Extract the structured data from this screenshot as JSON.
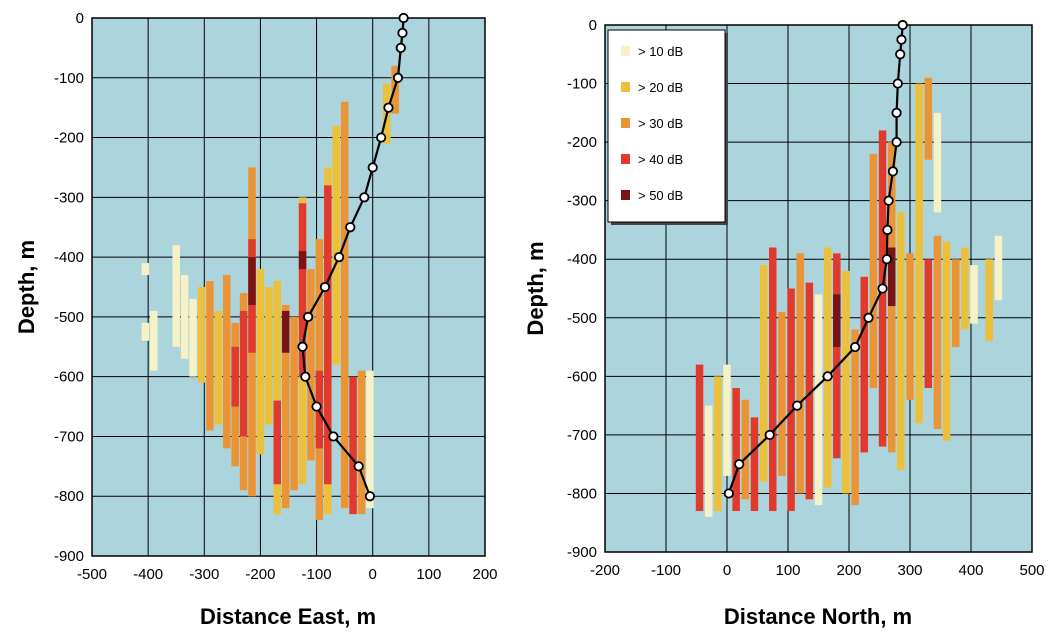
{
  "colors": {
    "plot_bg": "#acd4dd",
    "grid": "#000000",
    "trajectory": "#000000",
    "bins": [
      "#f6f1c6",
      "#ecc03a",
      "#eb9435",
      "#e03a2c",
      "#7a1414"
    ]
  },
  "chart_data": [
    {
      "type": "heatmap",
      "xlabel": "Distance East, m",
      "ylabel": "Depth, m",
      "xlim": [
        -500,
        200
      ],
      "ylim": [
        -900,
        0
      ],
      "xticks": [
        "-500",
        "-400",
        "-300",
        "-200",
        "-100",
        "0",
        "100",
        "200"
      ],
      "yticks": [
        "0",
        "-100",
        "-200",
        "-300",
        "-400",
        "-500",
        "-600",
        "-700",
        "-800",
        "-900"
      ],
      "grid": true,
      "trajectory": [
        [
          55,
          0
        ],
        [
          53,
          -25
        ],
        [
          50,
          -50
        ],
        [
          45,
          -100
        ],
        [
          28,
          -150
        ],
        [
          15,
          -200
        ],
        [
          0,
          -250
        ],
        [
          -15,
          -300
        ],
        [
          -40,
          -350
        ],
        [
          -60,
          -400
        ],
        [
          -85,
          -450
        ],
        [
          -115,
          -500
        ],
        [
          -125,
          -550
        ],
        [
          -120,
          -600
        ],
        [
          -100,
          -650
        ],
        [
          -70,
          -700
        ],
        [
          -25,
          -750
        ],
        [
          -5,
          -800
        ]
      ],
      "cells": [
        {
          "x": -405,
          "y0": -430,
          "y1": -410,
          "level": 1
        },
        {
          "x": -405,
          "y0": -540,
          "y1": -510,
          "level": 1
        },
        {
          "x": -390,
          "y0": -590,
          "y1": -490,
          "level": 1
        },
        {
          "x": -350,
          "y0": -550,
          "y1": -380,
          "level": 1
        },
        {
          "x": -335,
          "y0": -570,
          "y1": -430,
          "level": 1
        },
        {
          "x": -320,
          "y0": -600,
          "y1": -470,
          "level": 1
        },
        {
          "x": -305,
          "y0": -610,
          "y1": -450,
          "level": 2
        },
        {
          "x": -290,
          "y0": -690,
          "y1": -440,
          "level": 3
        },
        {
          "x": -275,
          "y0": -680,
          "y1": -490,
          "level": 2
        },
        {
          "x": -260,
          "y0": -720,
          "y1": -430,
          "level": 3
        },
        {
          "x": -245,
          "y0": -750,
          "y1": -510,
          "level": 3
        },
        {
          "x": -245,
          "y0": -650,
          "y1": -550,
          "level": 4
        },
        {
          "x": -230,
          "y0": -790,
          "y1": -460,
          "level": 3
        },
        {
          "x": -230,
          "y0": -700,
          "y1": -490,
          "level": 4
        },
        {
          "x": -215,
          "y0": -800,
          "y1": -250,
          "level": 3
        },
        {
          "x": -215,
          "y0": -560,
          "y1": -370,
          "level": 4
        },
        {
          "x": -215,
          "y0": -480,
          "y1": -400,
          "level": 5
        },
        {
          "x": -200,
          "y0": -730,
          "y1": -420,
          "level": 2
        },
        {
          "x": -185,
          "y0": -680,
          "y1": -450,
          "level": 2
        },
        {
          "x": -170,
          "y0": -830,
          "y1": -440,
          "level": 2
        },
        {
          "x": -170,
          "y0": -780,
          "y1": -640,
          "level": 4
        },
        {
          "x": -155,
          "y0": -820,
          "y1": -480,
          "level": 3
        },
        {
          "x": -155,
          "y0": -560,
          "y1": -490,
          "level": 5
        },
        {
          "x": -140,
          "y0": -790,
          "y1": -500,
          "level": 3
        },
        {
          "x": -125,
          "y0": -780,
          "y1": -300,
          "level": 2
        },
        {
          "x": -125,
          "y0": -600,
          "y1": -310,
          "level": 4
        },
        {
          "x": -125,
          "y0": -420,
          "y1": -390,
          "level": 5
        },
        {
          "x": -110,
          "y0": -740,
          "y1": -420,
          "level": 3
        },
        {
          "x": -95,
          "y0": -840,
          "y1": -370,
          "level": 3
        },
        {
          "x": -95,
          "y0": -720,
          "y1": -590,
          "level": 4
        },
        {
          "x": -80,
          "y0": -830,
          "y1": -250,
          "level": 2
        },
        {
          "x": -80,
          "y0": -780,
          "y1": -280,
          "level": 4
        },
        {
          "x": -65,
          "y0": -580,
          "y1": -180,
          "level": 2
        },
        {
          "x": -50,
          "y0": -820,
          "y1": -140,
          "level": 3
        },
        {
          "x": -35,
          "y0": -830,
          "y1": -600,
          "level": 4
        },
        {
          "x": -20,
          "y0": -830,
          "y1": -590,
          "level": 3
        },
        {
          "x": -5,
          "y0": -820,
          "y1": -590,
          "level": 1
        },
        {
          "x": 25,
          "y0": -210,
          "y1": -110,
          "level": 2
        },
        {
          "x": 40,
          "y0": -160,
          "y1": -80,
          "level": 3
        }
      ]
    },
    {
      "type": "heatmap",
      "xlabel": "Distance North, m",
      "ylabel": "Depth, m",
      "xlim": [
        -200,
        500
      ],
      "ylim": [
        -900,
        0
      ],
      "xticks": [
        "-200",
        "-100",
        "0",
        "100",
        "200",
        "300",
        "400",
        "500"
      ],
      "yticks": [
        "0",
        "-100",
        "-200",
        "-300",
        "-400",
        "-500",
        "-600",
        "-700",
        "-800",
        "-900"
      ],
      "grid": true,
      "legend": {
        "position": "top-left",
        "entries": [
          "> 10 dB",
          "> 20 dB",
          "> 30 dB",
          "> 40 dB",
          "> 50 dB"
        ]
      },
      "trajectory": [
        [
          288,
          0
        ],
        [
          286,
          -25
        ],
        [
          284,
          -50
        ],
        [
          280,
          -100
        ],
        [
          278,
          -150
        ],
        [
          278,
          -200
        ],
        [
          272,
          -250
        ],
        [
          265,
          -300
        ],
        [
          263,
          -350
        ],
        [
          262,
          -400
        ],
        [
          255,
          -450
        ],
        [
          232,
          -500
        ],
        [
          210,
          -550
        ],
        [
          165,
          -600
        ],
        [
          115,
          -650
        ],
        [
          70,
          -700
        ],
        [
          20,
          -750
        ],
        [
          3,
          -800
        ]
      ],
      "cells": [
        {
          "x": -45,
          "y0": -830,
          "y1": -580,
          "level": 4
        },
        {
          "x": -30,
          "y0": -840,
          "y1": -650,
          "level": 1
        },
        {
          "x": -15,
          "y0": -830,
          "y1": -600,
          "level": 2
        },
        {
          "x": 0,
          "y0": -770,
          "y1": -580,
          "level": 1
        },
        {
          "x": 15,
          "y0": -830,
          "y1": -620,
          "level": 4
        },
        {
          "x": 30,
          "y0": -810,
          "y1": -640,
          "level": 3
        },
        {
          "x": 45,
          "y0": -830,
          "y1": -670,
          "level": 4
        },
        {
          "x": 60,
          "y0": -780,
          "y1": -410,
          "level": 2
        },
        {
          "x": 75,
          "y0": -830,
          "y1": -380,
          "level": 4
        },
        {
          "x": 90,
          "y0": -770,
          "y1": -490,
          "level": 3
        },
        {
          "x": 105,
          "y0": -830,
          "y1": -450,
          "level": 4
        },
        {
          "x": 120,
          "y0": -800,
          "y1": -390,
          "level": 3
        },
        {
          "x": 135,
          "y0": -810,
          "y1": -440,
          "level": 4
        },
        {
          "x": 150,
          "y0": -820,
          "y1": -460,
          "level": 1
        },
        {
          "x": 165,
          "y0": -790,
          "y1": -380,
          "level": 2
        },
        {
          "x": 180,
          "y0": -740,
          "y1": -390,
          "level": 4
        },
        {
          "x": 180,
          "y0": -550,
          "y1": -460,
          "level": 5
        },
        {
          "x": 195,
          "y0": -800,
          "y1": -420,
          "level": 2
        },
        {
          "x": 210,
          "y0": -820,
          "y1": -520,
          "level": 3
        },
        {
          "x": 225,
          "y0": -730,
          "y1": -430,
          "level": 4
        },
        {
          "x": 240,
          "y0": -620,
          "y1": -220,
          "level": 3
        },
        {
          "x": 255,
          "y0": -720,
          "y1": -180,
          "level": 4
        },
        {
          "x": 270,
          "y0": -730,
          "y1": -200,
          "level": 3
        },
        {
          "x": 270,
          "y0": -480,
          "y1": -380,
          "level": 5
        },
        {
          "x": 285,
          "y0": -760,
          "y1": -320,
          "level": 2
        },
        {
          "x": 300,
          "y0": -640,
          "y1": -390,
          "level": 3
        },
        {
          "x": 315,
          "y0": -680,
          "y1": -100,
          "level": 2
        },
        {
          "x": 330,
          "y0": -230,
          "y1": -90,
          "level": 3
        },
        {
          "x": 330,
          "y0": -620,
          "y1": -400,
          "level": 4
        },
        {
          "x": 345,
          "y0": -320,
          "y1": -150,
          "level": 1
        },
        {
          "x": 345,
          "y0": -690,
          "y1": -360,
          "level": 3
        },
        {
          "x": 360,
          "y0": -710,
          "y1": -370,
          "level": 2
        },
        {
          "x": 375,
          "y0": -550,
          "y1": -400,
          "level": 3
        },
        {
          "x": 390,
          "y0": -520,
          "y1": -380,
          "level": 2
        },
        {
          "x": 405,
          "y0": -510,
          "y1": -410,
          "level": 1
        },
        {
          "x": 430,
          "y0": -540,
          "y1": -400,
          "level": 2
        },
        {
          "x": 445,
          "y0": -470,
          "y1": -360,
          "level": 1
        }
      ]
    }
  ]
}
